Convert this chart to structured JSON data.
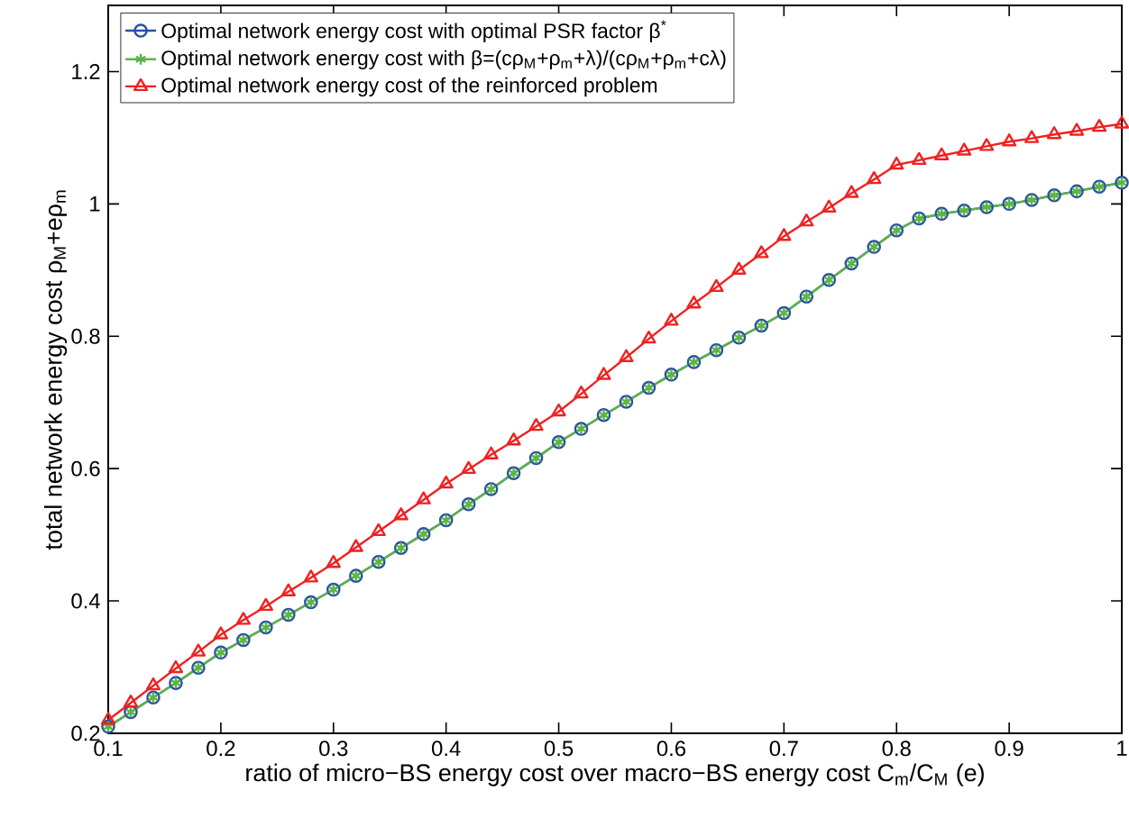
{
  "chart_data": {
    "type": "line",
    "xlabel": "ratio of micro−BS energy cost over macro−BS energy cost   C$_{m}$/C$_{M}$  (e)",
    "ylabel": "total network energy cost   ρ$_{M}$+eρ$_{m}$",
    "x": [
      0.1,
      0.12,
      0.14,
      0.16,
      0.18,
      0.2,
      0.22,
      0.24,
      0.26,
      0.28,
      0.3,
      0.32,
      0.34,
      0.36,
      0.38,
      0.4,
      0.42,
      0.44,
      0.46,
      0.48,
      0.5,
      0.52,
      0.54,
      0.56,
      0.58,
      0.6,
      0.62,
      0.64,
      0.66,
      0.68,
      0.7,
      0.72,
      0.74,
      0.76,
      0.78,
      0.8,
      0.82,
      0.84,
      0.86,
      0.88,
      0.9,
      0.92,
      0.94,
      0.96,
      0.98,
      1.0
    ],
    "series": [
      {
        "name": "Optimal network energy cost with optimal PSR factor  β$^{*}$",
        "color": "#2a4fa8",
        "marker": "circle",
        "values": [
          0.21,
          0.232,
          0.254,
          0.276,
          0.299,
          0.322,
          0.341,
          0.36,
          0.379,
          0.398,
          0.417,
          0.438,
          0.459,
          0.48,
          0.501,
          0.522,
          0.546,
          0.569,
          0.593,
          0.616,
          0.64,
          0.66,
          0.681,
          0.701,
          0.722,
          0.742,
          0.761,
          0.779,
          0.798,
          0.816,
          0.835,
          0.86,
          0.885,
          0.91,
          0.935,
          0.96,
          0.978,
          0.985,
          0.99,
          0.995,
          1.0,
          1.006,
          1.013,
          1.019,
          1.026,
          1.032
        ]
      },
      {
        "name": "Optimal network energy cost with β=(cρ$_{M}$+ρ$_{m}$+λ)/(cρ$_{M}$+ρ$_{m}$+cλ)",
        "color": "#5db543",
        "marker": "cross",
        "values": [
          0.21,
          0.232,
          0.254,
          0.276,
          0.299,
          0.322,
          0.341,
          0.36,
          0.379,
          0.398,
          0.417,
          0.438,
          0.459,
          0.48,
          0.501,
          0.522,
          0.546,
          0.569,
          0.593,
          0.616,
          0.64,
          0.66,
          0.681,
          0.701,
          0.722,
          0.742,
          0.761,
          0.779,
          0.798,
          0.816,
          0.835,
          0.86,
          0.885,
          0.91,
          0.935,
          0.96,
          0.978,
          0.985,
          0.99,
          0.995,
          1.0,
          1.006,
          1.013,
          1.019,
          1.026,
          1.032
        ]
      },
      {
        "name": "Optimal network energy cost of the reinforced problem",
        "color": "#f02020",
        "marker": "triangle",
        "values": [
          0.22,
          0.246,
          0.272,
          0.298,
          0.323,
          0.349,
          0.371,
          0.392,
          0.414,
          0.435,
          0.457,
          0.481,
          0.505,
          0.529,
          0.553,
          0.577,
          0.599,
          0.621,
          0.642,
          0.664,
          0.686,
          0.713,
          0.741,
          0.768,
          0.796,
          0.823,
          0.849,
          0.874,
          0.9,
          0.925,
          0.951,
          0.973,
          0.994,
          1.016,
          1.037,
          1.059,
          1.066,
          1.073,
          1.08,
          1.087,
          1.094,
          1.099,
          1.105,
          1.11,
          1.116,
          1.121
        ]
      }
    ],
    "xlim": [
      0.1,
      1.0
    ],
    "ylim": [
      0.2,
      1.3
    ],
    "xticks": [
      0.1,
      0.2,
      0.3,
      0.4,
      0.5,
      0.6,
      0.7,
      0.8,
      0.9,
      1
    ],
    "yticks": [
      0.2,
      0.4,
      0.6,
      0.8,
      1,
      1.2
    ],
    "grid": false,
    "legend": "top left",
    "line_style": "solid"
  }
}
